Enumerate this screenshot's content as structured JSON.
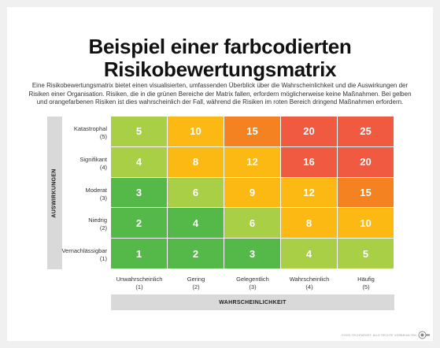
{
  "title_line1": "Beispiel einer farbcodierten",
  "title_line2": "Risikobewertungsmatrix",
  "description": "Eine Risikobewertungsmatrix bietet einen visualisierten, umfassenden Überblick über die Wahrscheinlichkeit und die Auswirkungen der Risiken einer Organisation. Risiken, die in die grünen Bereiche der Matrix fallen, erfordern möglicherweise keine Maßnahmen. Bei gelben und orangefarbenen Risiken ist dies wahrscheinlich der Fall, während die Risiken im roten Bereich dringend Maßnahmen erfordern.",
  "y_axis_label": "AUSWIRKUNGEN",
  "x_axis_label": "WAHRSCHEINLICHKEIT",
  "rows": [
    {
      "label": "Katastrophal",
      "level": "(5)"
    },
    {
      "label": "Signifikant",
      "level": "(4)"
    },
    {
      "label": "Moderat",
      "level": "(3)"
    },
    {
      "label": "Niedrig",
      "level": "(2)"
    },
    {
      "label": "Vernachlässigbar",
      "level": "(1)"
    }
  ],
  "columns": [
    {
      "label": "Unwahrscheinlich",
      "level": "(1)"
    },
    {
      "label": "Gering",
      "level": "(2)"
    },
    {
      "label": "Gelegentlich",
      "level": "(3)"
    },
    {
      "label": "Wahrscheinlich",
      "level": "(4)"
    },
    {
      "label": "Häufig",
      "level": "(5)"
    }
  ],
  "matrix": [
    [
      "5",
      "10",
      "15",
      "20",
      "25"
    ],
    [
      "4",
      "8",
      "12",
      "16",
      "20"
    ],
    [
      "3",
      "6",
      "9",
      "12",
      "15"
    ],
    [
      "2",
      "4",
      "6",
      "8",
      "10"
    ],
    [
      "1",
      "2",
      "3",
      "4",
      "5"
    ]
  ],
  "colors": {
    "dark_green": "#54b948",
    "light_green": "#a8cf45",
    "yellow": "#fdb913",
    "orange": "#f58220",
    "red": "#ef5a40"
  },
  "cell_colors": [
    [
      "light_green",
      "yellow",
      "orange",
      "red",
      "red"
    ],
    [
      "light_green",
      "yellow",
      "yellow",
      "red",
      "red"
    ],
    [
      "dark_green",
      "light_green",
      "yellow",
      "yellow",
      "orange"
    ],
    [
      "dark_green",
      "dark_green",
      "light_green",
      "yellow",
      "yellow"
    ],
    [
      "dark_green",
      "dark_green",
      "dark_green",
      "light_green",
      "light_green"
    ]
  ],
  "footer": "©2023 TECHTARGET. ALLE RECHTE VORBEHALTEN",
  "logo_name": "techtarget-logo"
}
